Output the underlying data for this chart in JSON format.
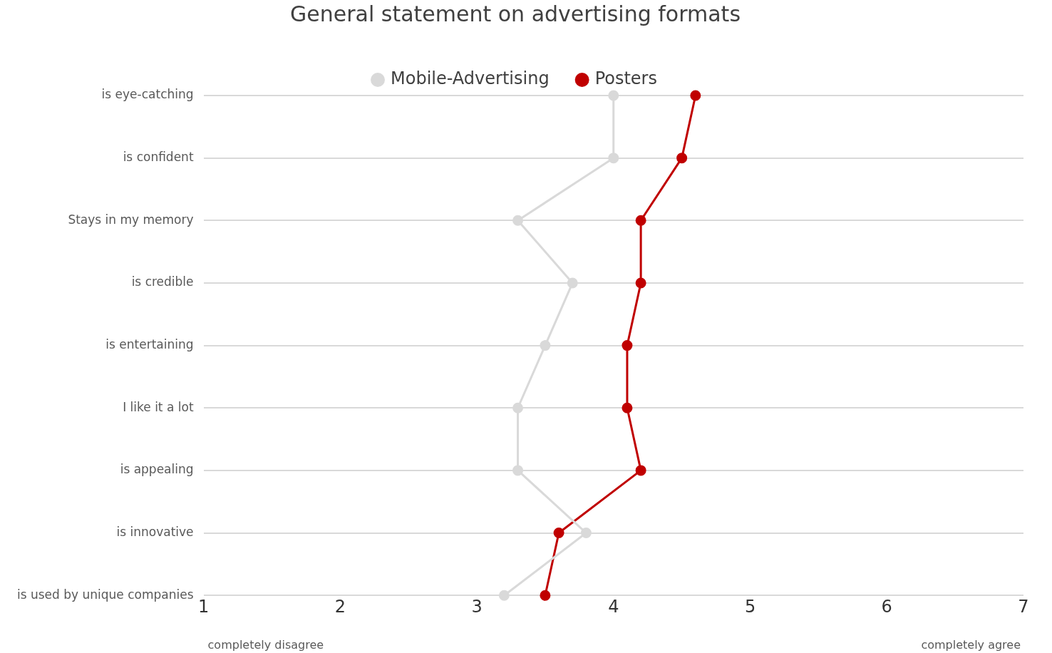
{
  "chart_data": {
    "type": "line",
    "title": "General statement on advertising formats",
    "categories": [
      "is eye-catching",
      "is confident",
      "Stays in my memory",
      "is credible",
      "is entertaining",
      "I like it a lot",
      "is appealing",
      "is innovative",
      "is used by unique companies"
    ],
    "series": [
      {
        "name": "Mobile-Advertising",
        "color": "#d9d9d9",
        "values": [
          4.0,
          4.0,
          3.3,
          3.7,
          3.5,
          3.3,
          3.3,
          3.8,
          3.2
        ]
      },
      {
        "name": "Posters",
        "color": "#c00000",
        "values": [
          4.6,
          4.5,
          4.2,
          4.2,
          4.1,
          4.1,
          4.2,
          3.6,
          3.5
        ]
      }
    ],
    "orientation": "horizontal",
    "xlim": [
      1,
      7
    ],
    "xticks": [
      1,
      2,
      3,
      4,
      5,
      6,
      7
    ],
    "grid": "y",
    "legend": "top",
    "marker": "circle",
    "line_style": "solid",
    "annotations": [
      "completely disagree",
      "completely agree"
    ]
  }
}
